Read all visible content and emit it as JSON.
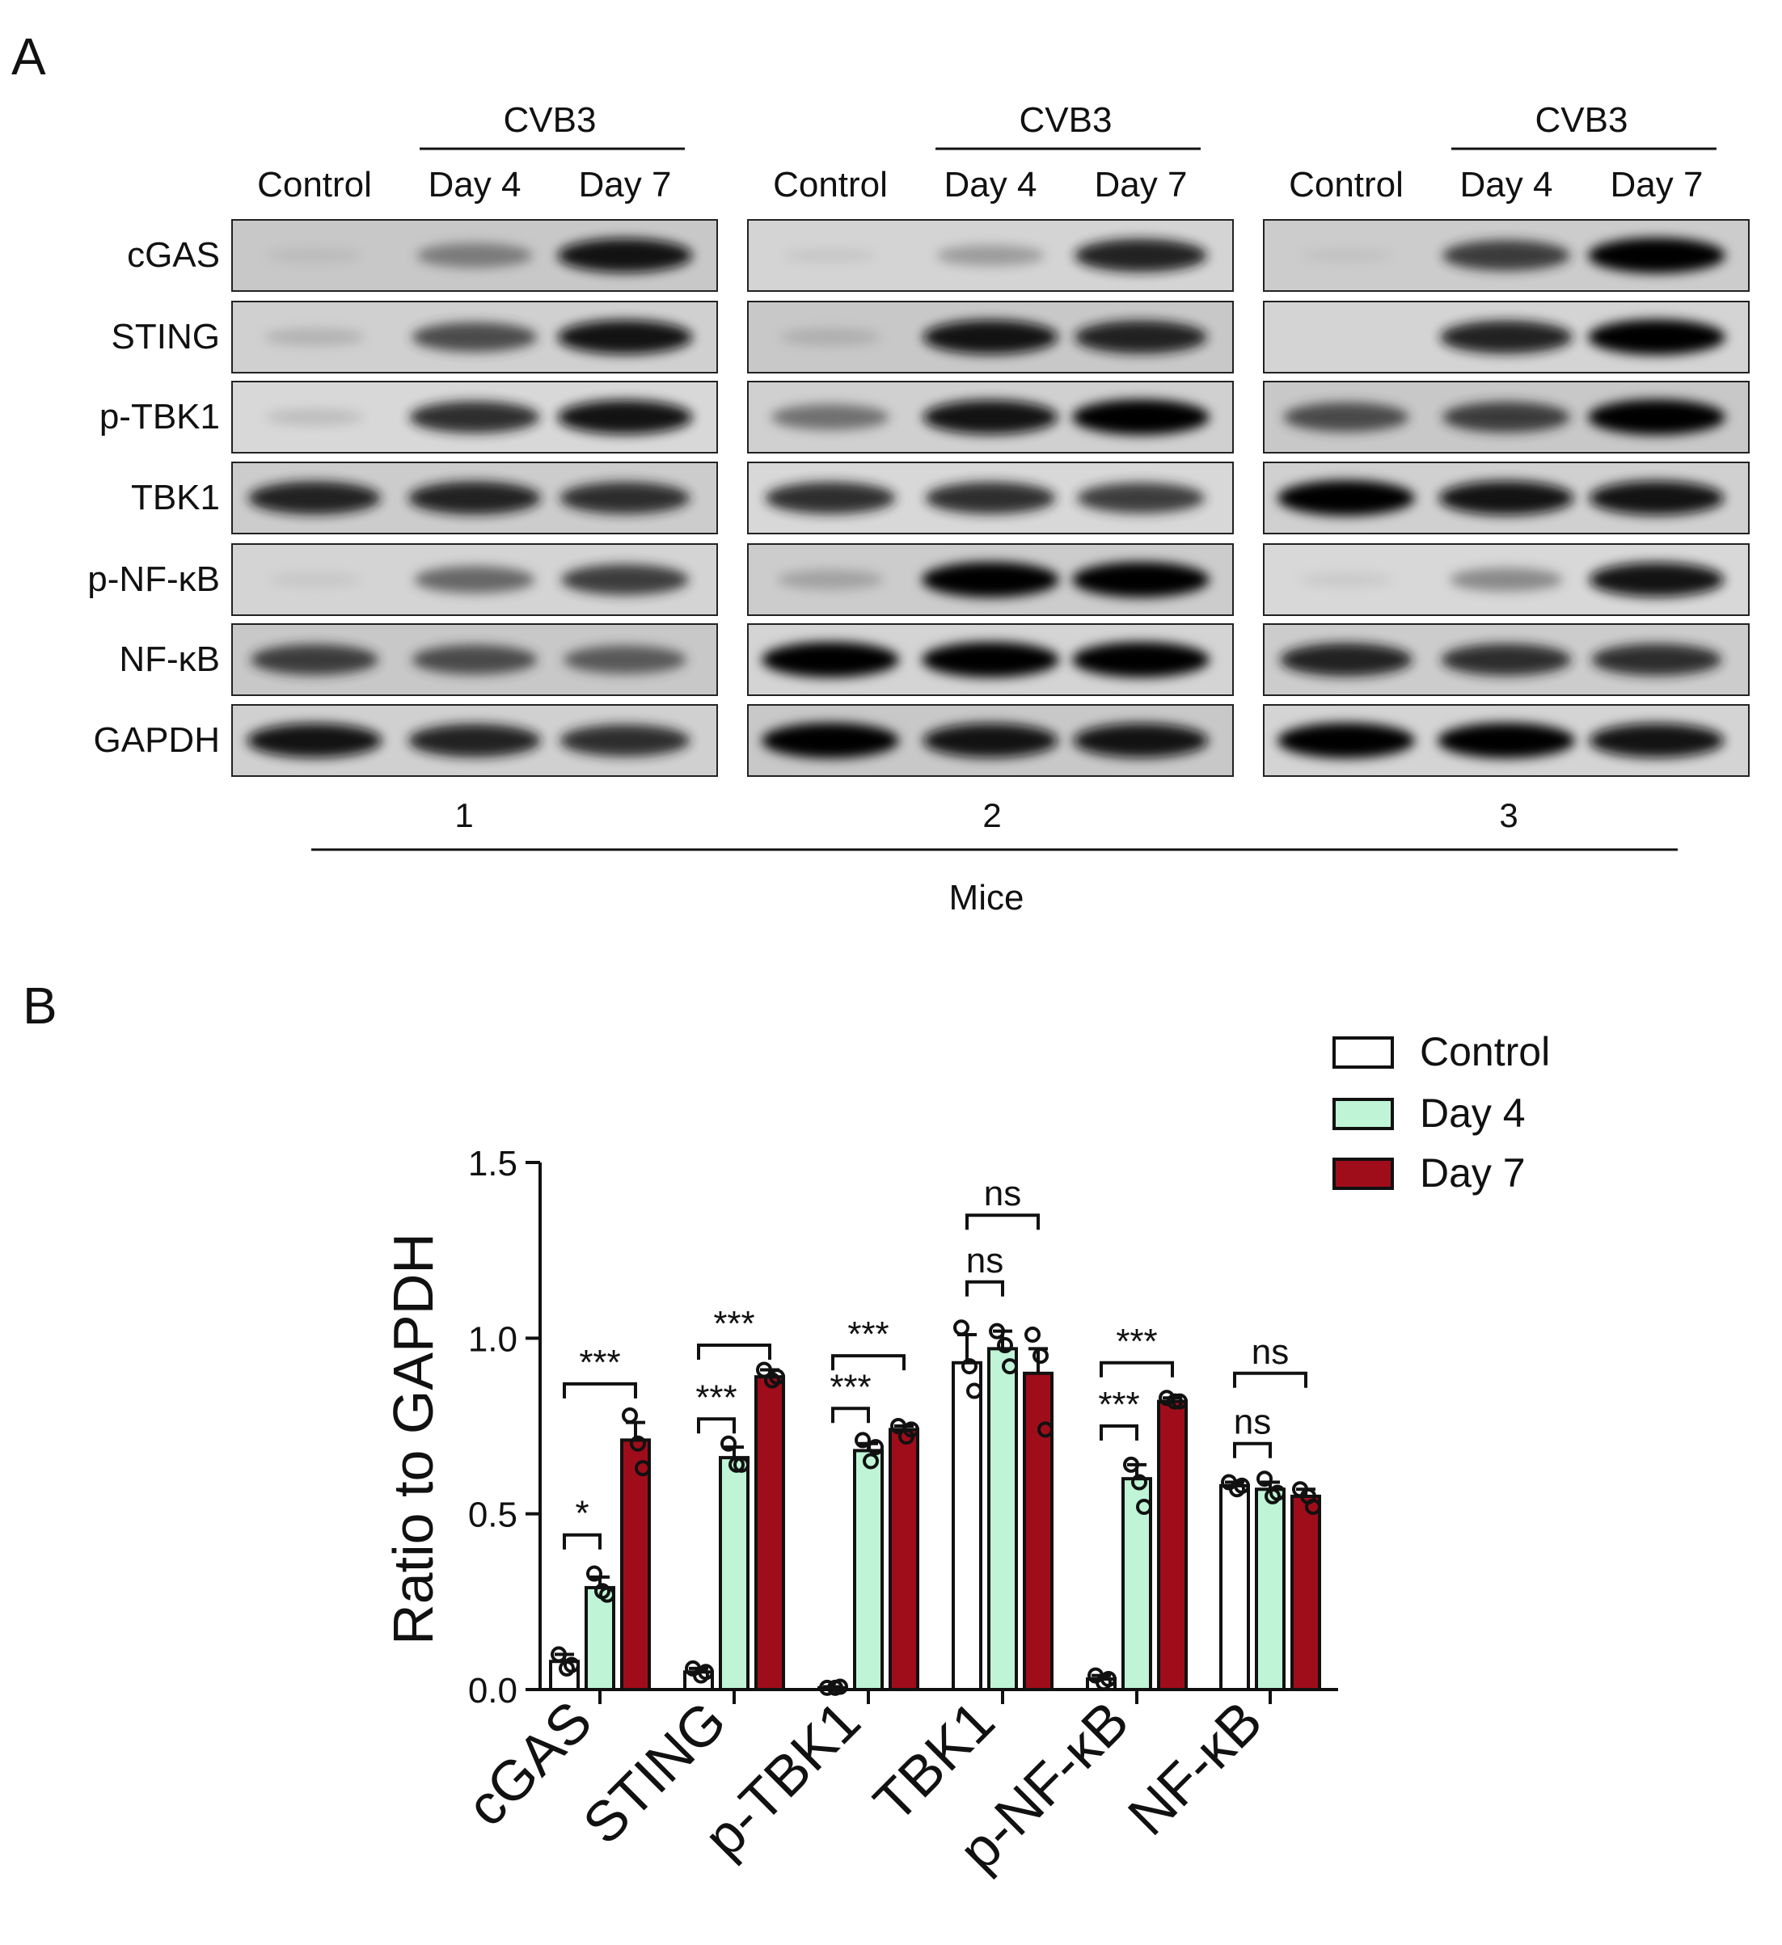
{
  "panel_a": {
    "label": "A",
    "group_header": "CVB3",
    "columns": [
      "Control",
      "Day 4",
      "Day 7"
    ],
    "proteins": [
      "cGAS",
      "STING",
      "p-TBK1",
      "TBK1",
      "p-NF-κB",
      "NF-κB",
      "GAPDH"
    ],
    "mice": [
      "1",
      "2",
      "3"
    ],
    "mice_label": "Mice",
    "band_intensity": [
      [
        [
          0.15,
          0.55,
          0.95
        ],
        [
          0.25,
          0.75,
          0.95
        ],
        [
          0.2,
          0.85,
          0.95
        ],
        [
          0.9,
          0.9,
          0.85
        ],
        [
          0.1,
          0.65,
          0.8
        ],
        [
          0.8,
          0.75,
          0.7
        ],
        [
          0.95,
          0.9,
          0.85
        ]
      ],
      [
        [
          0.1,
          0.4,
          0.9
        ],
        [
          0.25,
          0.95,
          0.9
        ],
        [
          0.6,
          0.95,
          1.0
        ],
        [
          0.85,
          0.85,
          0.8
        ],
        [
          0.35,
          1.0,
          1.0
        ],
        [
          1.0,
          1.0,
          1.0
        ],
        [
          1.0,
          0.95,
          0.95
        ]
      ],
      [
        [
          0.1,
          0.8,
          1.0
        ],
        [
          0.0,
          0.9,
          1.0
        ],
        [
          0.75,
          0.8,
          1.0
        ],
        [
          1.0,
          0.95,
          0.95
        ],
        [
          0.1,
          0.5,
          0.95
        ],
        [
          0.9,
          0.85,
          0.85
        ],
        [
          1.0,
          1.0,
          0.95
        ]
      ]
    ]
  },
  "panel_b": {
    "label": "B",
    "colors": {
      "Control": "#ffffff",
      "Day 4": "#bff5d6",
      "Day 7": "#a00d1a"
    },
    "significance": [
      {
        "category": "cGAS",
        "low": "*",
        "high": "***"
      },
      {
        "category": "STING",
        "low": "***",
        "high": "***"
      },
      {
        "category": "p-TBK1",
        "low": "***",
        "high": "***"
      },
      {
        "category": "TBK1",
        "low": "ns",
        "high": "ns"
      },
      {
        "category": "p-NF-κB",
        "low": "***",
        "high": "***"
      },
      {
        "category": "NF-κB",
        "low": "ns",
        "high": "ns"
      }
    ]
  },
  "chart_data": {
    "type": "bar",
    "ylabel": "Ratio to GAPDH",
    "ylim": [
      0,
      1.5
    ],
    "yticks": [
      "0.0",
      "0.5",
      "1.0",
      "1.5"
    ],
    "legend_position": "top-right",
    "categories": [
      "cGAS",
      "STING",
      "p-TBK1",
      "TBK1",
      "p-NF-κB",
      "NF-κB"
    ],
    "series": [
      {
        "name": "Control",
        "values": [
          0.08,
          0.05,
          0.005,
          0.93,
          0.03,
          0.58
        ],
        "errors": [
          0.02,
          0.01,
          0.003,
          0.08,
          0.01,
          0.01
        ],
        "points": [
          [
            0.1,
            0.06,
            0.07
          ],
          [
            0.06,
            0.04,
            0.05
          ],
          [
            0.005,
            0.005,
            0.008
          ],
          [
            1.03,
            0.92,
            0.85
          ],
          [
            0.04,
            0.02,
            0.03
          ],
          [
            0.59,
            0.57,
            0.58
          ]
        ]
      },
      {
        "name": "Day 4",
        "values": [
          0.29,
          0.66,
          0.68,
          0.97,
          0.6,
          0.57
        ],
        "errors": [
          0.03,
          0.03,
          0.02,
          0.05,
          0.04,
          0.02
        ],
        "points": [
          [
            0.33,
            0.28,
            0.27
          ],
          [
            0.7,
            0.64,
            0.64
          ],
          [
            0.71,
            0.65,
            0.69
          ],
          [
            1.02,
            0.98,
            0.92
          ],
          [
            0.64,
            0.59,
            0.52
          ],
          [
            0.6,
            0.55,
            0.56
          ]
        ]
      },
      {
        "name": "Day 7",
        "values": [
          0.71,
          0.89,
          0.74,
          0.9,
          0.82,
          0.55
        ],
        "errors": [
          0.05,
          0.02,
          0.01,
          0.07,
          0.01,
          0.02
        ],
        "points": [
          [
            0.78,
            0.7,
            0.63
          ],
          [
            0.91,
            0.88,
            0.89
          ],
          [
            0.75,
            0.72,
            0.74
          ],
          [
            1.01,
            0.95,
            0.74
          ],
          [
            0.83,
            0.82,
            0.82
          ],
          [
            0.57,
            0.55,
            0.52
          ]
        ]
      }
    ]
  }
}
